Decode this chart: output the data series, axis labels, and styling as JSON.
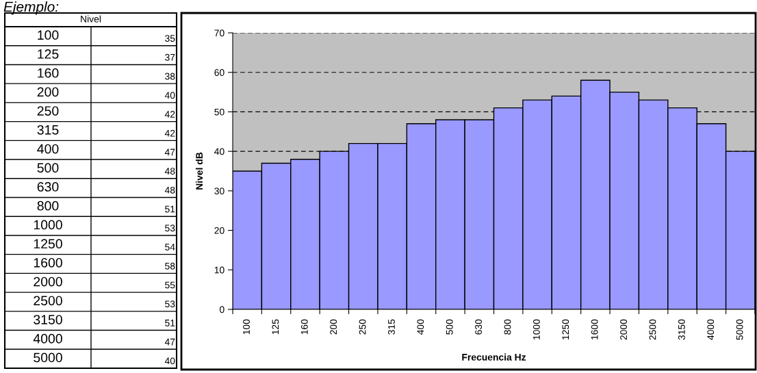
{
  "chart_data": [
    {
      "type": "other",
      "title": "Nivel",
      "annotations": [
        "Ejemplo:"
      ],
      "categories": [
        "100",
        "125",
        "160",
        "200",
        "250",
        "315",
        "400",
        "500",
        "630",
        "800",
        "1000",
        "1250",
        "1600",
        "2000",
        "2500",
        "3150",
        "4000",
        "5000"
      ],
      "values": [
        35,
        37,
        38,
        40,
        42,
        42,
        47,
        48,
        48,
        51,
        53,
        54,
        58,
        55,
        53,
        51,
        47,
        40
      ],
      "value_labels": [
        "35",
        "37",
        "38",
        "40",
        "42",
        "42",
        "47",
        "48",
        "48",
        "51",
        "53",
        "54",
        "58",
        "55",
        "53",
        "51",
        "47",
        "40"
      ]
    },
    {
      "type": "bar",
      "xlabel": "Frecuencia Hz",
      "ylabel": "Nivel dB",
      "categories": [
        "100",
        "125",
        "160",
        "200",
        "250",
        "315",
        "400",
        "500",
        "630",
        "800",
        "1000",
        "1250",
        "1600",
        "2000",
        "2500",
        "3150",
        "4000",
        "5000"
      ],
      "values": [
        35,
        37,
        38,
        40,
        42,
        42,
        47,
        48,
        48,
        51,
        53,
        54,
        58,
        55,
        53,
        51,
        47,
        40
      ],
      "color": "#9999ff",
      "ylim": [
        0,
        70
      ],
      "yticks": [
        0,
        10,
        20,
        30,
        40,
        50,
        60,
        70
      ],
      "grid": "y"
    }
  ]
}
